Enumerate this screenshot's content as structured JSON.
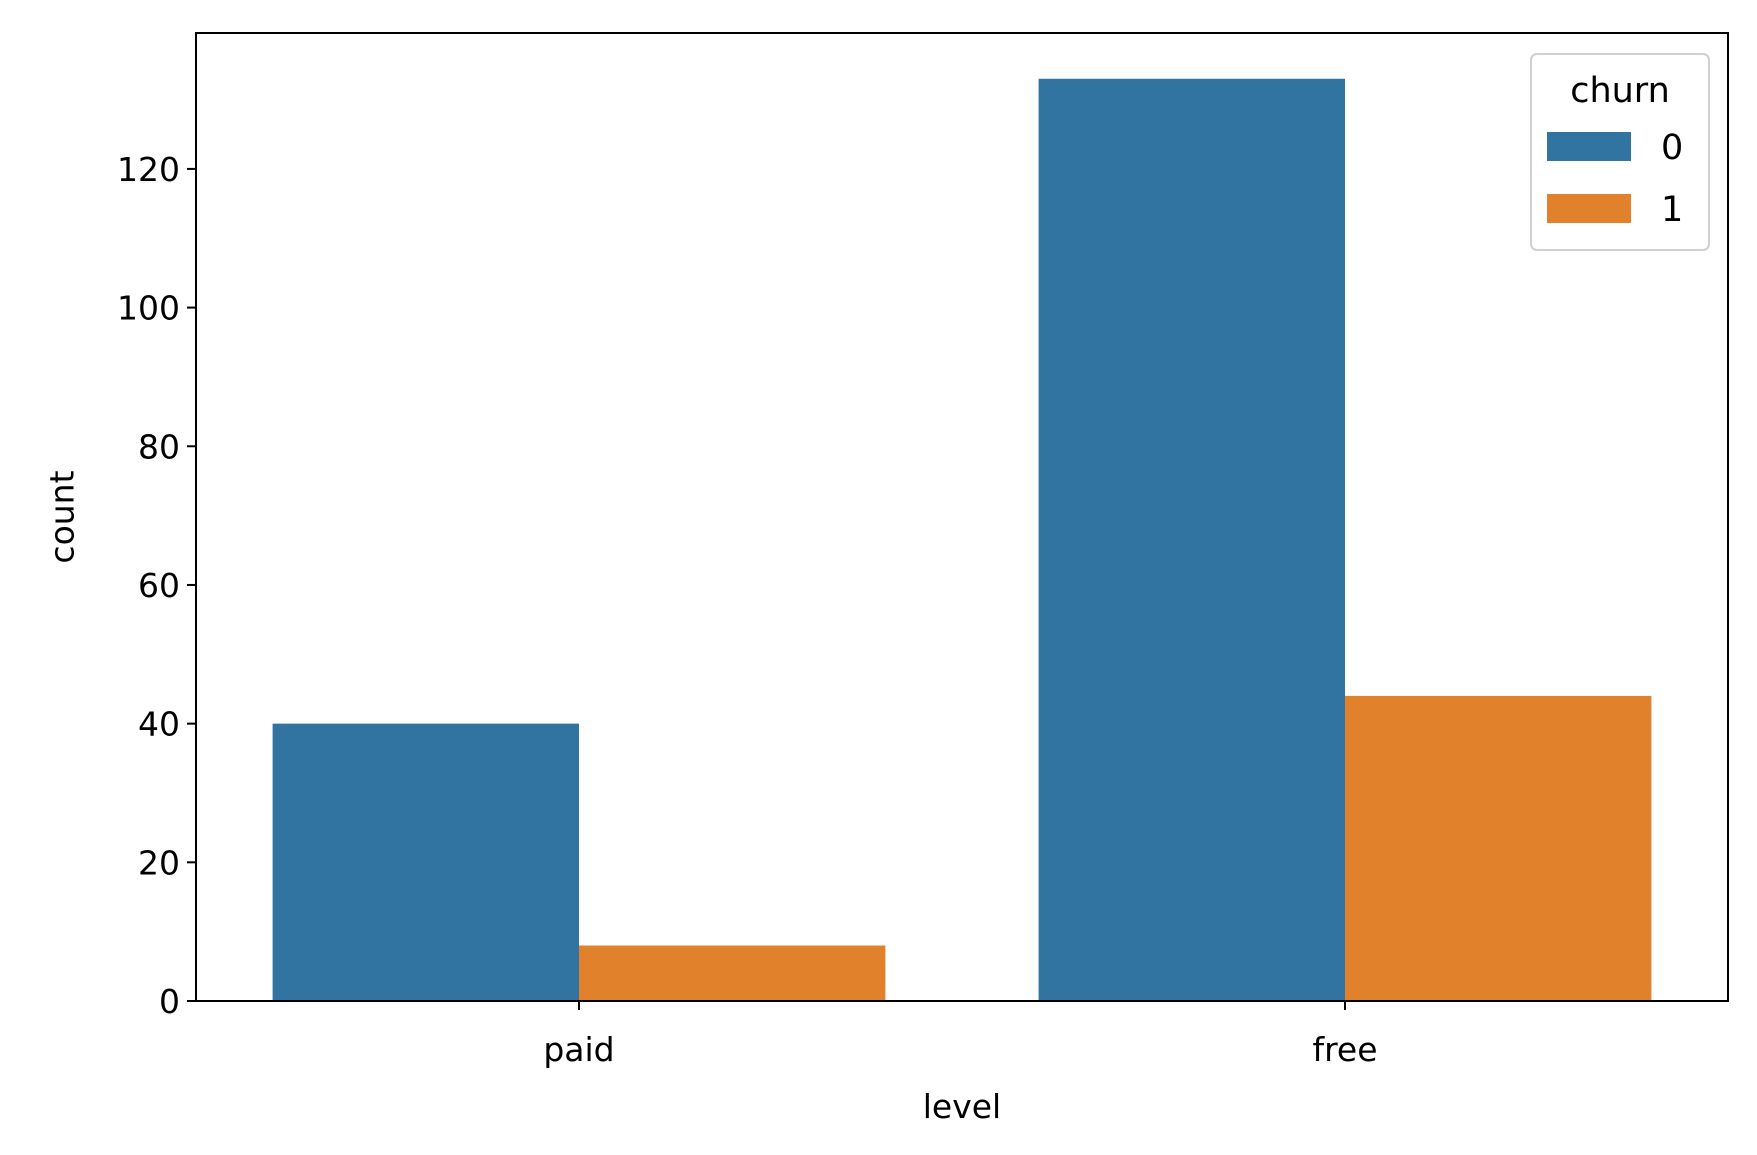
{
  "chart_data": {
    "type": "bar",
    "title": "",
    "xlabel": "level",
    "ylabel": "count",
    "categories": [
      "paid",
      "free"
    ],
    "series": [
      {
        "name": "0",
        "values": [
          40,
          133
        ],
        "color": "#3274a1"
      },
      {
        "name": "1",
        "values": [
          8,
          44
        ],
        "color": "#e1812c"
      }
    ],
    "ylim": [
      0,
      139.6
    ],
    "yticks": [
      0,
      20,
      40,
      60,
      80,
      100,
      120
    ],
    "grid": false,
    "legend": {
      "title": "churn",
      "position": "top-right"
    }
  }
}
